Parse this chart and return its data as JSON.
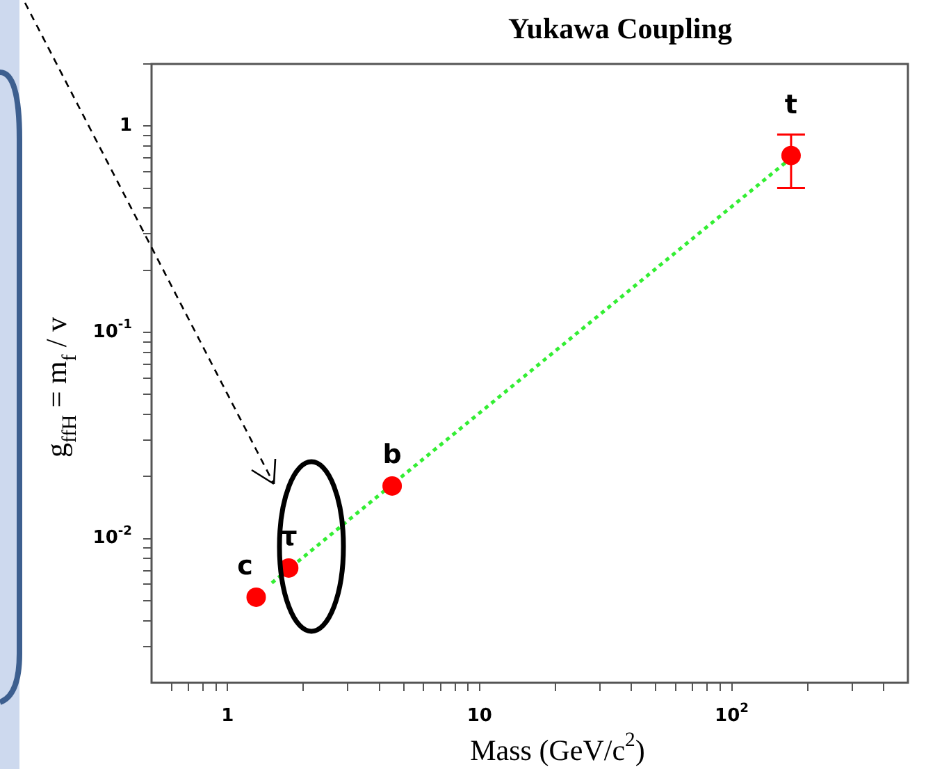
{
  "chart_data": {
    "type": "scatter",
    "title": "Yukawa Coupling",
    "xlabel": "Mass (GeV/c$^{2}$)",
    "ylabel": "g$_{ffH}$ = m$_{f}$ / v",
    "log": "xy",
    "grid": false,
    "legend": false,
    "marker": "circle",
    "xlim": [
      0.5,
      500
    ],
    "ylim": [
      0.002,
      2
    ],
    "xticks": [
      {
        "value": 0.6,
        "label": null
      },
      {
        "value": 0.7,
        "label": null
      },
      {
        "value": 0.8,
        "label": null
      },
      {
        "value": 0.9,
        "label": null
      },
      1,
      {
        "value": 2,
        "label": null
      },
      {
        "value": 3,
        "label": null
      },
      {
        "value": 4,
        "label": null
      },
      {
        "value": 5,
        "label": null
      },
      {
        "value": 6,
        "label": null
      },
      {
        "value": 7,
        "label": null
      },
      {
        "value": 8,
        "label": null
      },
      {
        "value": 9,
        "label": null
      },
      10,
      {
        "value": 20,
        "label": null
      },
      {
        "value": 30,
        "label": null
      },
      {
        "value": 40,
        "label": null
      },
      {
        "value": 50,
        "label": null
      },
      {
        "value": 60,
        "label": null
      },
      {
        "value": 70,
        "label": null
      },
      {
        "value": 80,
        "label": null
      },
      {
        "value": 90,
        "label": null
      },
      {
        "value": 100,
        "label": "10$^{2}$"
      },
      {
        "value": 200,
        "label": null
      },
      {
        "value": 300,
        "label": null
      },
      {
        "value": 400,
        "label": null
      }
    ],
    "yticks": [
      {
        "value": 0.003,
        "label": null
      },
      {
        "value": 0.004,
        "label": null
      },
      {
        "value": 0.005,
        "label": null
      },
      {
        "value": 0.006,
        "label": null
      },
      {
        "value": 0.007,
        "label": null
      },
      {
        "value": 0.008,
        "label": null
      },
      {
        "value": 0.009,
        "label": null
      },
      {
        "value": 0.01,
        "label": "10$^{-2}$"
      },
      {
        "value": 0.02,
        "label": null
      },
      {
        "value": 0.03,
        "label": null
      },
      {
        "value": 0.04,
        "label": null
      },
      {
        "value": 0.05,
        "label": null
      },
      {
        "value": 0.06,
        "label": null
      },
      {
        "value": 0.07,
        "label": null
      },
      {
        "value": 0.08,
        "label": null
      },
      {
        "value": 0.09,
        "label": null
      },
      {
        "value": 0.1,
        "label": "10$^{-1}$"
      },
      {
        "value": 0.2,
        "label": null
      },
      {
        "value": 0.3,
        "label": null
      },
      {
        "value": 0.4,
        "label": null
      },
      {
        "value": 0.5,
        "label": null
      },
      {
        "value": 0.6,
        "label": null
      },
      {
        "value": 0.7,
        "label": null
      },
      {
        "value": 0.8,
        "label": null
      },
      {
        "value": 0.9,
        "label": null
      },
      1,
      {
        "value": 2,
        "label": null
      }
    ],
    "series": [
      {
        "type": "scatter",
        "color": "#ff0000",
        "x": [
          1.3,
          1.75,
          4.5,
          172
        ],
        "values": [
          0.0052,
          0.0072,
          0.018,
          0.72
        ],
        "errors": [
          null,
          null,
          null,
          [
            0.5,
            0.91
          ]
        ]
      },
      {
        "type": "line",
        "color": "#33ee33",
        "line_style": "dotted",
        "marker": "none",
        "x": [
          1.5,
          172
        ],
        "values": [
          0.0061,
          0.7
        ]
      }
    ],
    "annotations": [
      {
        "text": "c",
        "x": 1.3,
        "y": 0.0052
      },
      {
        "text": "τ",
        "x": 1.75,
        "y": 0.0072
      },
      {
        "text": "b",
        "x": 4.5,
        "y": 0.018
      },
      {
        "text": "t",
        "x": 172,
        "y": 0.72
      }
    ]
  }
}
